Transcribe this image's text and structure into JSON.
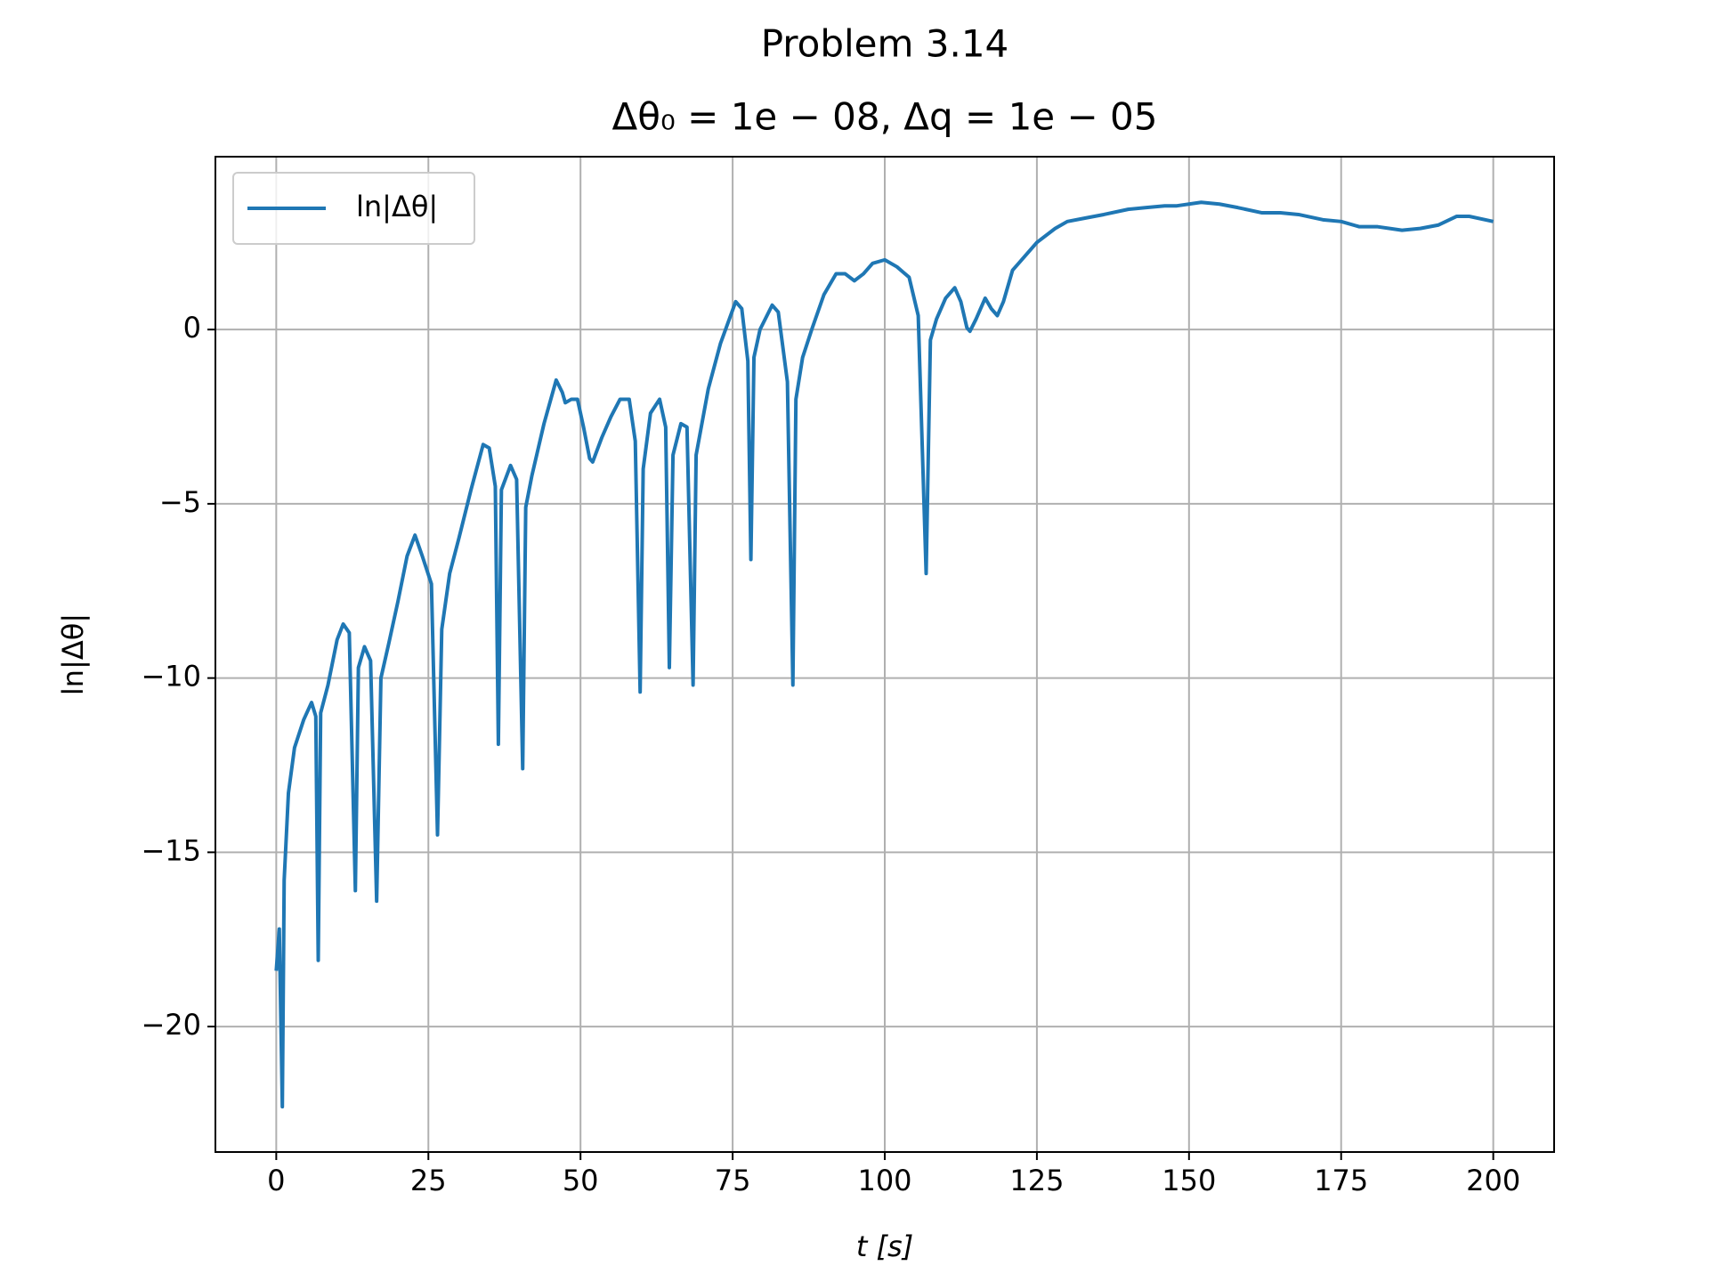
{
  "chart_data": {
    "type": "line",
    "title": "Problem 3.14",
    "subtitle": "Δθ₀ = 1e − 08, Δq = 1e − 05",
    "xlabel": "t [s]",
    "ylabel": "ln|Δθ|",
    "x": [
      0,
      0.5,
      1.0,
      1.3,
      2,
      3,
      4.5,
      5.8,
      6.5,
      6.9,
      7.3,
      8.5,
      10,
      11,
      12,
      13,
      13.5,
      14.5,
      15.5,
      16.5,
      17.2,
      18.5,
      20,
      21.5,
      22.8,
      24,
      25.5,
      26.5,
      27.2,
      28.5,
      30,
      32,
      34,
      35,
      36,
      36.5,
      37,
      38.5,
      39.5,
      40.5,
      41,
      42,
      44,
      46,
      47,
      47.5,
      48.5,
      49.5,
      50.5,
      51.5,
      52,
      53.5,
      55,
      56.5,
      58,
      59,
      59.8,
      60.3,
      61.5,
      63,
      64,
      64.6,
      65.2,
      66.5,
      67.5,
      68.5,
      69,
      71,
      73,
      75.5,
      76.5,
      77.5,
      78,
      78.5,
      79.5,
      81.5,
      82.5,
      84,
      84.9,
      85.4,
      86.5,
      88,
      90,
      92,
      93.5,
      95,
      96.5,
      98,
      100,
      102,
      104,
      105.5,
      106.8,
      107.5,
      108.5,
      110,
      111.5,
      112.5,
      113.5,
      114,
      115,
      116.5,
      117.5,
      118.5,
      119.5,
      121,
      123,
      125,
      128,
      130,
      133,
      136,
      140,
      143,
      146,
      148,
      152,
      155,
      158,
      162,
      165,
      168,
      172,
      175,
      178,
      181,
      185,
      188,
      191,
      194,
      196,
      200
    ],
    "series": [
      {
        "name": "ln|Δθ|",
        "color": "#1f77b4",
        "values": [
          -18.4,
          -17.2,
          -22.3,
          -15.8,
          -13.3,
          -12.0,
          -11.2,
          -10.7,
          -11.1,
          -18.1,
          -11.0,
          -10.2,
          -8.9,
          -8.45,
          -8.7,
          -16.1,
          -9.7,
          -9.1,
          -9.5,
          -16.4,
          -10.0,
          -9.0,
          -7.8,
          -6.5,
          -5.9,
          -6.5,
          -7.3,
          -14.5,
          -8.6,
          -7.0,
          -6.0,
          -4.6,
          -3.3,
          -3.4,
          -4.5,
          -11.9,
          -4.6,
          -3.9,
          -4.3,
          -12.6,
          -5.1,
          -4.2,
          -2.7,
          -1.45,
          -1.8,
          -2.1,
          -2.0,
          -2.0,
          -2.8,
          -3.7,
          -3.8,
          -3.1,
          -2.5,
          -2.0,
          -2.0,
          -3.2,
          -10.4,
          -4.0,
          -2.4,
          -2.0,
          -2.8,
          -9.7,
          -3.6,
          -2.7,
          -2.8,
          -10.2,
          -3.6,
          -1.7,
          -0.4,
          0.8,
          0.6,
          -0.9,
          -6.6,
          -0.8,
          0.0,
          0.7,
          0.5,
          -1.5,
          -10.2,
          -2.0,
          -0.8,
          0.0,
          1.0,
          1.6,
          1.6,
          1.4,
          1.6,
          1.9,
          2.0,
          1.8,
          1.5,
          0.4,
          -7.0,
          -0.3,
          0.3,
          0.9,
          1.2,
          0.8,
          0.05,
          -0.05,
          0.3,
          0.9,
          0.6,
          0.4,
          0.8,
          1.7,
          2.1,
          2.5,
          2.9,
          3.1,
          3.2,
          3.3,
          3.45,
          3.5,
          3.55,
          3.55,
          3.65,
          3.6,
          3.5,
          3.35,
          3.35,
          3.3,
          3.15,
          3.1,
          2.95,
          2.95,
          2.85,
          2.9,
          3.0,
          3.25,
          3.25,
          3.1
        ]
      }
    ],
    "xlim": [
      -10,
      210
    ],
    "ylim": [
      -23.6,
      4.96
    ],
    "xticks": [
      0,
      25,
      50,
      75,
      100,
      125,
      150,
      175,
      200
    ],
    "yticks": [
      0,
      {
        "value": -5,
        "label": "−5"
      },
      {
        "value": -10,
        "label": "−10"
      },
      {
        "value": -15,
        "label": "−15"
      },
      {
        "value": -20,
        "label": "−20"
      }
    ],
    "grid": true,
    "legend": "upper left"
  }
}
